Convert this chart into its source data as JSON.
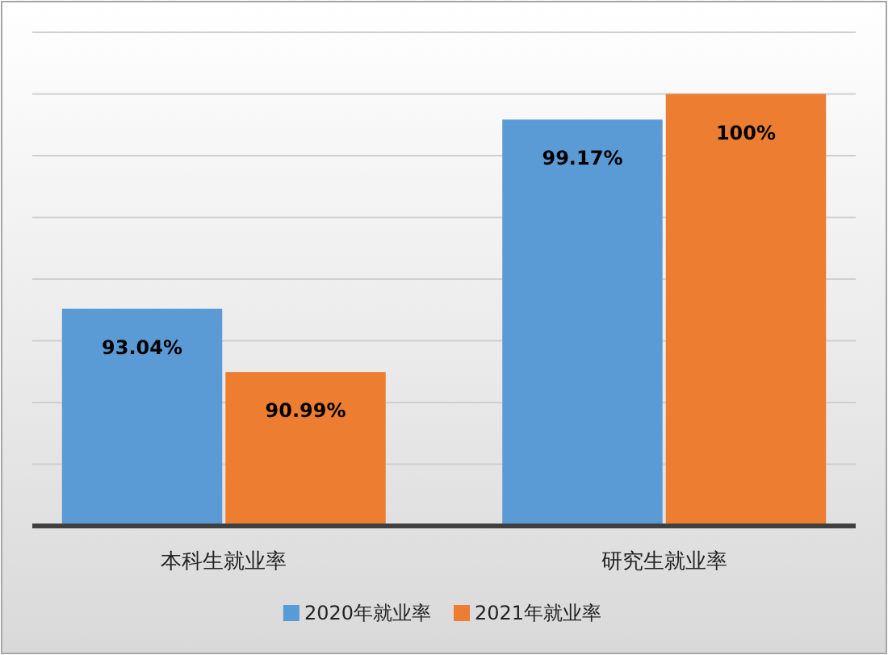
{
  "chart_data": {
    "type": "bar",
    "categories": [
      "本科生就业率",
      "研究生就业率"
    ],
    "series": [
      {
        "name": "2020年就业率",
        "color": "#5b9bd5",
        "values": [
          93.04,
          99.17
        ],
        "value_labels": [
          "93.04%",
          "99.17%"
        ]
      },
      {
        "name": "2021年就业率",
        "color": "#ed7d31",
        "values": [
          90.99,
          100
        ],
        "value_labels": [
          "90.99%",
          "100%"
        ]
      }
    ],
    "ylim": [
      86,
      102
    ],
    "yticks": [
      {
        "value": 86,
        "label": null
      },
      {
        "value": 88,
        "label": null
      },
      {
        "value": 90,
        "label": null
      },
      {
        "value": 92,
        "label": null
      },
      {
        "value": 94,
        "label": null
      },
      {
        "value": 96,
        "label": null
      },
      {
        "value": 98,
        "label": null
      },
      {
        "value": 100,
        "label": null
      },
      {
        "value": 102,
        "label": null
      }
    ],
    "tick_labels": "x",
    "grid": "y",
    "legend": "bottom"
  }
}
